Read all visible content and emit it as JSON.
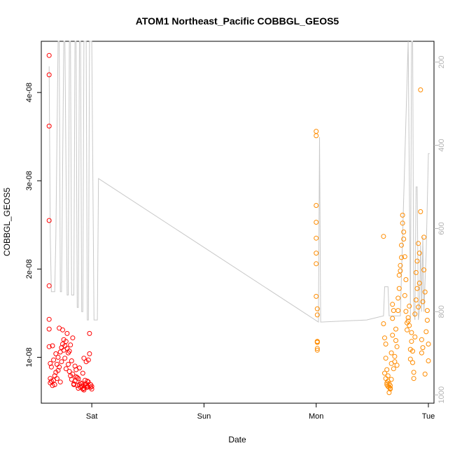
{
  "chart_data": {
    "type": "scatter",
    "title": "ATOM1 Northeast_Pacific COBBGL_GEOS5",
    "xlabel": "Date",
    "ylabel": "COBBGL_GEOS5",
    "x_ticks": [
      "Sat",
      "Sun",
      "Mon",
      "Tue"
    ],
    "x_tick_days": [
      1,
      2,
      3,
      4
    ],
    "xlim": [
      0.55,
      4.05
    ],
    "ylim": [
      4.8e-09,
      4.58e-08
    ],
    "y_ticks": [
      1e-08,
      2e-08,
      3e-08,
      4e-08
    ],
    "y_tick_labels": [
      "1e-08",
      "2e-08",
      "3e-08",
      "4e-08"
    ],
    "y2_ticks": [
      200,
      400,
      600,
      800,
      1000
    ],
    "y2_tick_labels": [
      "200",
      "400",
      "600",
      "800",
      "1000"
    ],
    "y2lim": [
      1020,
      150
    ],
    "grid": false,
    "colors": {
      "series1": "#ff0000",
      "series2": "#ff8c00",
      "pressure": "#c8c8c8"
    },
    "series": [
      {
        "color": "#ff0000",
        "x": [
          0.62,
          0.62,
          0.62,
          0.62,
          0.62,
          0.62,
          0.62,
          0.62,
          0.63,
          0.63,
          0.63,
          0.64,
          0.64,
          0.65,
          0.65,
          0.66,
          0.66,
          0.67,
          0.67,
          0.68,
          0.68,
          0.69,
          0.69,
          0.7,
          0.7,
          0.71,
          0.71,
          0.72,
          0.72,
          0.73,
          0.73,
          0.74,
          0.74,
          0.75,
          0.75,
          0.76,
          0.76,
          0.77,
          0.77,
          0.78,
          0.78,
          0.79,
          0.79,
          0.8,
          0.8,
          0.81,
          0.81,
          0.82,
          0.82,
          0.83,
          0.83,
          0.84,
          0.84,
          0.85,
          0.85,
          0.86,
          0.86,
          0.87,
          0.87,
          0.88,
          0.88,
          0.89,
          0.89,
          0.9,
          0.9,
          0.91,
          0.91,
          0.92,
          0.92,
          0.93,
          0.93,
          0.94,
          0.94,
          0.95,
          0.95,
          0.96,
          0.96,
          0.97,
          0.97,
          0.98,
          0.98,
          0.99,
          0.99,
          1.0,
          1.0,
          0.95,
          0.93,
          0.96
        ],
        "y": [
          4.42e-08,
          4.2e-08,
          3.62e-08,
          2.55e-08,
          1.81e-08,
          1.43e-08,
          1.32e-08,
          1.12e-08,
          9.3e-09,
          7.6e-09,
          7.1e-09,
          7.3e-09,
          8.9e-09,
          6.8e-09,
          1.13e-08,
          7.4e-09,
          9.7e-09,
          7.9e-09,
          6.9e-09,
          1.04e-08,
          8.3e-09,
          7.6e-09,
          9.2e-09,
          8.5e-09,
          1e-08,
          8.9e-09,
          1.33e-08,
          1.06e-08,
          7.2e-09,
          1.11e-08,
          9.5e-09,
          1.15e-08,
          1.31e-08,
          1.08e-08,
          1.2e-08,
          9.9e-09,
          1.13e-08,
          1.18e-08,
          8.7e-09,
          1.1e-08,
          1.27e-08,
          9.2e-09,
          1.05e-08,
          8.4e-09,
          1.07e-08,
          1.14e-08,
          7.9e-09,
          9.6e-09,
          7.5e-09,
          1.22e-08,
          8.1e-09,
          7e-09,
          6.9e-09,
          9e-09,
          7.3e-09,
          7.8e-09,
          8.6e-09,
          7.7e-09,
          6.8e-09,
          7.6e-09,
          6.5e-09,
          6.9e-09,
          8.8e-09,
          7.1e-09,
          6.6e-09,
          6.7e-09,
          7e-09,
          8.2e-09,
          6.4e-09,
          6.5e-09,
          6.3e-09,
          6.9e-09,
          7.4e-09,
          6.8e-09,
          7e-09,
          6.7e-09,
          6.6e-09,
          7.2e-09,
          9.7e-09,
          1.04e-08,
          1.27e-08,
          6.6e-09,
          6.9e-09,
          6.7e-09,
          6.4e-09,
          9.5e-09,
          9.9e-09,
          7.3e-09
        ]
      },
      {
        "color": "#ff8c00",
        "x": [
          3.0,
          3.0,
          3.0,
          3.0,
          3.0,
          3.0,
          3.0,
          3.0,
          3.01,
          3.01,
          3.01,
          3.01,
          3.01,
          3.01,
          3.01,
          3.01,
          3.6,
          3.6,
          3.61,
          3.61,
          3.62,
          3.62,
          3.62,
          3.63,
          3.63,
          3.63,
          3.64,
          3.64,
          3.64,
          3.65,
          3.65,
          3.65,
          3.66,
          3.66,
          3.66,
          3.67,
          3.67,
          3.67,
          3.68,
          3.68,
          3.68,
          3.69,
          3.69,
          3.7,
          3.7,
          3.71,
          3.71,
          3.72,
          3.72,
          3.73,
          3.73,
          3.74,
          3.74,
          3.75,
          3.75,
          3.76,
          3.76,
          3.77,
          3.77,
          3.78,
          3.78,
          3.79,
          3.79,
          3.8,
          3.8,
          3.81,
          3.81,
          3.82,
          3.82,
          3.83,
          3.83,
          3.84,
          3.84,
          3.85,
          3.85,
          3.86,
          3.86,
          3.87,
          3.87,
          3.88,
          3.88,
          3.89,
          3.89,
          3.9,
          3.9,
          3.91,
          3.91,
          3.92,
          3.92,
          3.93,
          3.93,
          3.94,
          3.94,
          3.95,
          3.95,
          3.96,
          3.96,
          3.97,
          3.97,
          3.98,
          3.99,
          3.99,
          4.0,
          4.0
        ],
        "y": [
          3.56e-08,
          3.51e-08,
          2.72e-08,
          2.53e-08,
          2.35e-08,
          2.18e-08,
          2.06e-08,
          1.69e-08,
          1.55e-08,
          1.48e-08,
          1.18e-08,
          1.17e-08,
          1.1e-08,
          1.08e-08,
          1.17e-08,
          1.18e-08,
          2.37e-08,
          1.38e-08,
          1.22e-08,
          8.2e-09,
          7.6e-09,
          1.15e-08,
          9.9e-09,
          7.1e-09,
          6.9e-09,
          8.6e-09,
          6.7e-09,
          7.3e-09,
          7.9e-09,
          6.6e-09,
          7e-09,
          6e-09,
          6.5e-09,
          6.4e-09,
          6.8e-09,
          7.5e-09,
          1.05e-08,
          9.3e-09,
          1.25e-08,
          1.44e-08,
          1.6e-08,
          1.53e-08,
          8.7e-09,
          1.01e-08,
          9.5e-09,
          1.19e-08,
          1.32e-08,
          1.12e-08,
          9.1e-09,
          1.67e-08,
          1.53e-08,
          1.78e-08,
          1.93e-08,
          1.98e-08,
          2.04e-08,
          2.27e-08,
          2.13e-08,
          2.61e-08,
          2.52e-08,
          2.34e-08,
          2.42e-08,
          1.7e-08,
          2.14e-08,
          1.88e-08,
          1.52e-08,
          1.39e-08,
          1.31e-08,
          1.45e-08,
          1.41e-08,
          1.36e-08,
          1.58e-08,
          1.09e-08,
          9.8e-09,
          1.18e-08,
          1.28e-08,
          1.07e-08,
          9.4e-09,
          8.3e-09,
          7.6e-09,
          1.49e-08,
          1.23e-08,
          1.65e-08,
          1.96e-08,
          2.09e-08,
          1.78e-08,
          1.57e-08,
          2.29e-08,
          2.18e-08,
          1.84e-08,
          4.03e-08,
          2.65e-08,
          1.2e-08,
          1.05e-08,
          1.11e-08,
          1.63e-08,
          2.36e-08,
          1.99e-08,
          1.74e-08,
          8.1e-09,
          1.29e-08,
          1.42e-08,
          1.53e-08,
          9.6e-09,
          1.15e-08
        ]
      },
      {
        "color": "#c8c8c8",
        "style": "line",
        "x": [
          0.62,
          0.63,
          0.64,
          0.67,
          0.68,
          0.7,
          0.71,
          0.72,
          0.73,
          0.75,
          0.76,
          0.78,
          0.79,
          0.8,
          0.81,
          0.82,
          0.84,
          0.85,
          0.86,
          0.87,
          0.88,
          0.89,
          0.9,
          0.91,
          0.92,
          0.93,
          0.95,
          0.96,
          0.97,
          0.98,
          1.0,
          1.02,
          1.05,
          1.06,
          3.02,
          3.03,
          3.04,
          3.45,
          3.6,
          3.61,
          3.64,
          3.65,
          3.75,
          3.82,
          3.84,
          3.84,
          3.85,
          3.86,
          3.87,
          3.88,
          3.89,
          3.9,
          3.91,
          3.92,
          3.93,
          3.94,
          3.95,
          3.96,
          3.98,
          4.0,
          4.01
        ],
        "y": [
          210,
          620,
          752,
          752,
          620,
          150,
          150,
          752,
          752,
          150,
          150,
          760,
          760,
          150,
          150,
          760,
          760,
          150,
          150,
          790,
          790,
          150,
          150,
          800,
          800,
          150,
          150,
          820,
          820,
          150,
          150,
          820,
          820,
          480,
          825,
          380,
          825,
          820,
          810,
          740,
          740,
          810,
          810,
          150,
          800,
          820,
          150,
          150,
          800,
          820,
          500,
          500,
          820,
          800,
          640,
          800,
          620,
          800,
          660,
          420,
          420
        ]
      }
    ]
  }
}
